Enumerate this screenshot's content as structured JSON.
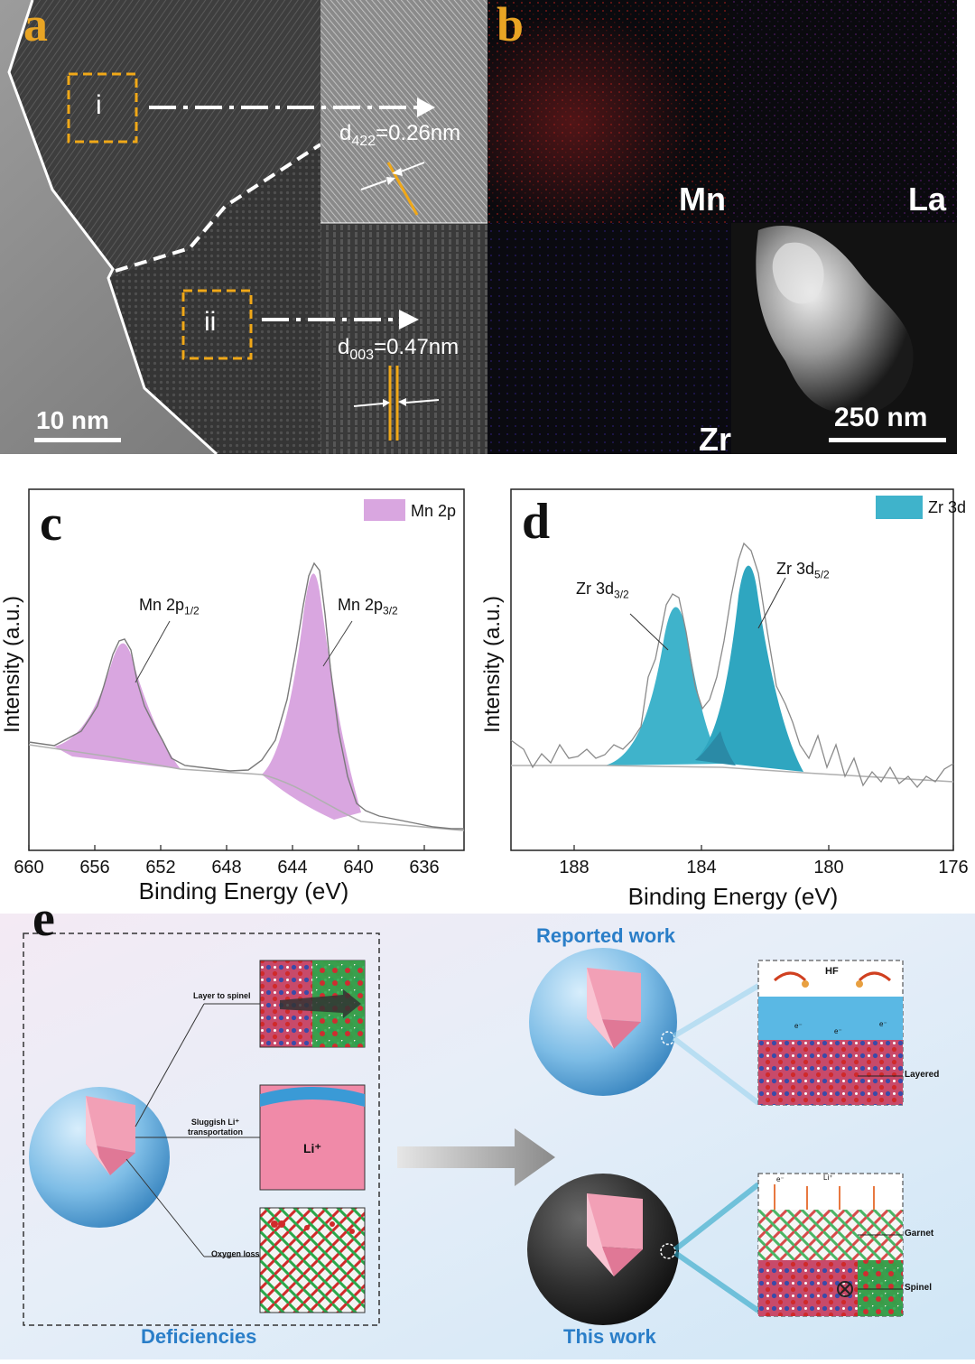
{
  "panel_a": {
    "letter": "a",
    "region_i": "i",
    "region_ii": "ii",
    "d422_prefix": "d",
    "d422_sub": "422",
    "d422_value": "=0.26nm",
    "d003_prefix": "d",
    "d003_sub": "003",
    "d003_value": "=0.47nm",
    "scale_bar": "10 nm"
  },
  "panel_b": {
    "letter": "b",
    "maps": [
      "Mn",
      "La",
      "Zr"
    ],
    "scale_bar": "250 nm",
    "colors": {
      "Mn": "#b42828",
      "La": "#6a2a8a",
      "Zr": "#2a1c6a"
    }
  },
  "panel_c": {
    "letter": "c",
    "legend": "Mn 2p",
    "ylabel": "Intensity (a.u.)",
    "xlabel": "Binding Energy (eV)",
    "xticks": [
      "660",
      "656",
      "652",
      "648",
      "644",
      "640",
      "636"
    ],
    "peak_label_1": "Mn 2p",
    "peak_label_1_sub": "1/2",
    "peak_label_2": "Mn 2p",
    "peak_label_2_sub": "3/2",
    "fill_color": "#d9a6e0"
  },
  "panel_d": {
    "letter": "d",
    "legend": "Zr 3d",
    "ylabel": "Intensity (a.u.)",
    "xlabel": "Binding Energy (eV)",
    "xticks": [
      "188",
      "184",
      "180",
      "176"
    ],
    "peak_label_1": "Zr 3d",
    "peak_label_1_sub": "3/2",
    "peak_label_2": "Zr 3d",
    "peak_label_2_sub": "5/2",
    "fill_color": "#3fb3cb"
  },
  "panel_e": {
    "letter": "e",
    "left_title": "Deficiencies",
    "label_layer": "Layer to spinel",
    "label_sluggish_1": "Sluggish Li⁺",
    "label_sluggish_2": "transportation",
    "label_li": "Li⁺",
    "label_oxygen": "Oxygen loss",
    "reported_title": "Reported work",
    "this_work_title": "This work",
    "label_hf": "HF",
    "label_layered": "Layered",
    "label_garnet": "Garnet",
    "label_spinel": "Spinel",
    "label_e": "e⁻",
    "label_li_top": "Li⁺"
  },
  "chart_data": [
    {
      "type": "line",
      "title": "",
      "xlabel": "Binding Energy (eV)",
      "ylabel": "Intensity (a.u.)",
      "xlim": [
        660,
        634
      ],
      "series": [
        {
          "name": "Mn 2p",
          "peaks": [
            {
              "label": "Mn 2p1/2",
              "x": 653.9
            },
            {
              "label": "Mn 2p3/2",
              "x": 642.2
            }
          ]
        }
      ]
    },
    {
      "type": "line",
      "title": "",
      "xlabel": "Binding Energy (eV)",
      "ylabel": "Intensity (a.u.)",
      "xlim": [
        190,
        176
      ],
      "series": [
        {
          "name": "Zr 3d",
          "peaks": [
            {
              "label": "Zr 3d3/2",
              "x": 184.8
            },
            {
              "label": "Zr 3d5/2",
              "x": 182.4
            }
          ]
        }
      ]
    }
  ]
}
